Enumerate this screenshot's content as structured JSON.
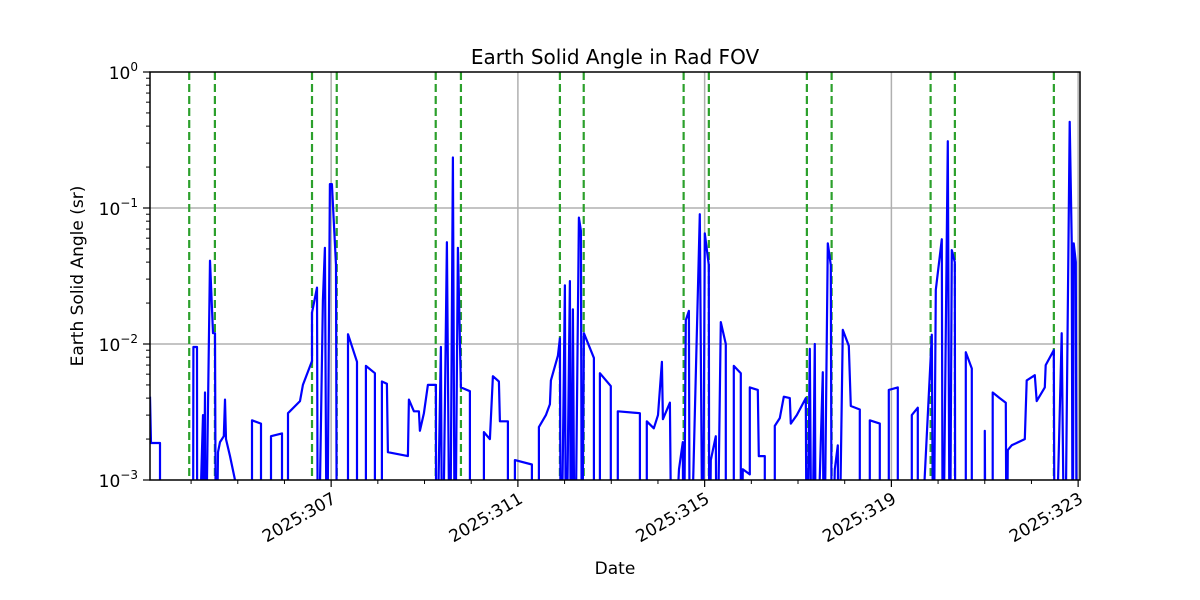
{
  "chart_data": {
    "type": "line",
    "title": "Earth Solid Angle in Rad FOV",
    "xlabel": "Date",
    "ylabel": "Earth Solid Angle (sr)",
    "xscale": "linear (day of year 2025)",
    "yscale": "log",
    "xlim": [
      303.12,
      323.04
    ],
    "ylim": [
      0.001,
      1
    ],
    "grid": true,
    "x_ticks": [
      {
        "value": 307,
        "label": "2025:307"
      },
      {
        "value": 311,
        "label": "2025:311"
      },
      {
        "value": 315,
        "label": "2025:315"
      },
      {
        "value": 319,
        "label": "2025:319"
      },
      {
        "value": 323,
        "label": "2025:323"
      }
    ],
    "y_ticks": [
      {
        "value": 0.001,
        "base": "10",
        "exp": "−3"
      },
      {
        "value": 0.01,
        "base": "10",
        "exp": "−2"
      },
      {
        "value": 0.1,
        "base": "10",
        "exp": "−1"
      },
      {
        "value": 1,
        "base": "10",
        "exp": "0"
      }
    ],
    "colors": {
      "series": "#0000ff",
      "event_lines": "#2ca02c",
      "grid": "#b0b0b0"
    },
    "event_lines_days": [
      303.96,
      304.51,
      306.59,
      307.12,
      309.24,
      309.78,
      311.9,
      312.41,
      314.55,
      315.09,
      317.19,
      317.72,
      319.84,
      320.36,
      322.48
    ],
    "series": [
      {
        "name": "Earth solid angle",
        "points": [
          [
            303.12,
            0.0041
          ],
          [
            303.141,
            0.00187
          ],
          [
            303.334,
            0.00187
          ],
          [
            303.334,
            0.0001
          ],
          [
            304.041,
            0.0001
          ],
          [
            304.05,
            0.0095
          ],
          [
            304.126,
            0.0095
          ],
          [
            304.13,
            0.0001
          ],
          [
            304.255,
            0.003
          ],
          [
            304.26,
            0.0001
          ],
          [
            304.298,
            0.0044
          ],
          [
            304.3,
            0.0001
          ],
          [
            304.405,
            0.041
          ],
          [
            304.469,
            0.012
          ],
          [
            304.512,
            0.012
          ],
          [
            304.533,
            0.0001
          ],
          [
            304.576,
            0.0016
          ],
          [
            304.619,
            0.0019
          ],
          [
            304.7,
            0.0021
          ],
          [
            304.726,
            0.0039
          ],
          [
            304.747,
            0.002
          ],
          [
            304.833,
            0.0015
          ],
          [
            304.94,
            0.001
          ],
          [
            304.96,
            0.0001
          ],
          [
            305.304,
            0.0001
          ],
          [
            305.304,
            0.00275
          ],
          [
            305.497,
            0.0026
          ],
          [
            305.497,
            0.0001
          ],
          [
            305.711,
            0.0001
          ],
          [
            305.711,
            0.0021
          ],
          [
            305.947,
            0.0022
          ],
          [
            305.947,
            0.0001
          ],
          [
            306.075,
            0.0001
          ],
          [
            306.075,
            0.0031
          ],
          [
            306.332,
            0.0038
          ],
          [
            306.396,
            0.005
          ],
          [
            306.589,
            0.0075
          ],
          [
            306.589,
            0.017
          ],
          [
            306.696,
            0.026
          ],
          [
            306.717,
            0.0001
          ],
          [
            306.824,
            0.021
          ],
          [
            306.867,
            0.051
          ],
          [
            306.91,
            0.0001
          ],
          [
            306.974,
            0.15
          ],
          [
            307.017,
            0.15
          ],
          [
            307.103,
            0.038
          ],
          [
            307.124,
            0.0001
          ],
          [
            307.36,
            0.0001
          ],
          [
            307.36,
            0.0118
          ],
          [
            307.553,
            0.0074
          ],
          [
            307.553,
            0.0001
          ],
          [
            307.745,
            0.0001
          ],
          [
            307.745,
            0.0069
          ],
          [
            307.938,
            0.0061
          ],
          [
            307.938,
            0.0001
          ],
          [
            308.088,
            0.0001
          ],
          [
            308.088,
            0.0053
          ],
          [
            308.195,
            0.0051
          ],
          [
            308.216,
            0.0016
          ],
          [
            308.645,
            0.0015
          ],
          [
            308.666,
            0.0039
          ],
          [
            308.773,
            0.0032
          ],
          [
            308.88,
            0.0032
          ],
          [
            308.902,
            0.0023
          ],
          [
            308.987,
            0.0031
          ],
          [
            309.073,
            0.005
          ],
          [
            309.244,
            0.005
          ],
          [
            309.25,
            0.0001
          ],
          [
            309.351,
            0.0095
          ],
          [
            309.38,
            0.0001
          ],
          [
            309.48,
            0.056
          ],
          [
            309.544,
            0.0001
          ],
          [
            309.608,
            0.235
          ],
          [
            309.651,
            0.0001
          ],
          [
            309.715,
            0.051
          ],
          [
            309.779,
            0.0048
          ],
          [
            309.972,
            0.0045
          ],
          [
            309.972,
            0.0001
          ],
          [
            310.272,
            0.0001
          ],
          [
            310.272,
            0.00225
          ],
          [
            310.4,
            0.002
          ],
          [
            310.464,
            0.0058
          ],
          [
            310.593,
            0.0053
          ],
          [
            310.614,
            0.0027
          ],
          [
            310.786,
            0.0027
          ],
          [
            310.786,
            0.0001
          ],
          [
            310.936,
            0.0001
          ],
          [
            310.936,
            0.0014
          ],
          [
            311.3,
            0.0013
          ],
          [
            311.3,
            0.0001
          ],
          [
            311.45,
            0.0001
          ],
          [
            311.45,
            0.00245
          ],
          [
            311.6,
            0.003
          ],
          [
            311.685,
            0.0036
          ],
          [
            311.707,
            0.0054
          ],
          [
            311.857,
            0.0082
          ],
          [
            311.899,
            0.011
          ],
          [
            311.921,
            0.0001
          ],
          [
            312.006,
            0.027
          ],
          [
            312.028,
            0.0001
          ],
          [
            312.114,
            0.029
          ],
          [
            312.135,
            0.0001
          ],
          [
            312.178,
            0.018
          ],
          [
            312.22,
            0.0001
          ],
          [
            312.306,
            0.085
          ],
          [
            312.349,
            0.068
          ],
          [
            312.371,
            0.0001
          ],
          [
            312.413,
            0.012
          ],
          [
            312.627,
            0.0079
          ],
          [
            312.627,
            0.0001
          ],
          [
            312.756,
            0.0001
          ],
          [
            312.756,
            0.0061
          ],
          [
            312.991,
            0.0049
          ],
          [
            312.991,
            0.0001
          ],
          [
            313.141,
            0.0001
          ],
          [
            313.141,
            0.0032
          ],
          [
            313.613,
            0.0031
          ],
          [
            313.613,
            0.0001
          ],
          [
            313.762,
            0.0001
          ],
          [
            313.762,
            0.0027
          ],
          [
            313.912,
            0.0024
          ],
          [
            314.0,
            0.003
          ],
          [
            314.084,
            0.0074
          ],
          [
            314.105,
            0.0028
          ],
          [
            314.255,
            0.0037
          ],
          [
            314.298,
            0.0001
          ],
          [
            314.45,
            0.0012
          ],
          [
            314.533,
            0.0019
          ],
          [
            314.55,
            0.0001
          ],
          [
            314.597,
            0.015
          ],
          [
            314.662,
            0.0175
          ],
          [
            314.683,
            0.0001
          ],
          [
            314.897,
            0.09
          ],
          [
            314.961,
            0.0001
          ],
          [
            315.004,
            0.065
          ],
          [
            315.09,
            0.038
          ],
          [
            315.1,
            0.0001
          ],
          [
            315.133,
            0.0014
          ],
          [
            315.24,
            0.0021
          ],
          [
            315.26,
            0.0001
          ],
          [
            315.347,
            0.0145
          ],
          [
            315.454,
            0.01
          ],
          [
            315.454,
            0.0001
          ],
          [
            315.625,
            0.0001
          ],
          [
            315.625,
            0.0069
          ],
          [
            315.775,
            0.0061
          ],
          [
            315.775,
            0.0001
          ],
          [
            315.818,
            0.0012
          ],
          [
            315.968,
            0.0011
          ],
          [
            315.968,
            0.0048
          ],
          [
            316.139,
            0.0046
          ],
          [
            316.16,
            0.0015
          ],
          [
            316.289,
            0.0015
          ],
          [
            316.289,
            0.0001
          ],
          [
            316.503,
            0.0001
          ],
          [
            316.503,
            0.0025
          ],
          [
            316.61,
            0.00285
          ],
          [
            316.696,
            0.0041
          ],
          [
            316.824,
            0.004
          ],
          [
            316.846,
            0.0026
          ],
          [
            316.974,
            0.003
          ],
          [
            317.167,
            0.004
          ],
          [
            317.188,
            0.0001
          ],
          [
            317.253,
            0.0092
          ],
          [
            317.296,
            0.0001
          ],
          [
            317.36,
            0.01
          ],
          [
            317.381,
            0.0001
          ],
          [
            317.531,
            0.0062
          ],
          [
            317.553,
            0.0001
          ],
          [
            317.638,
            0.055
          ],
          [
            317.702,
            0.038
          ],
          [
            317.724,
            0.0001
          ],
          [
            317.788,
            0.0012
          ],
          [
            317.852,
            0.0018
          ],
          [
            317.87,
            0.0001
          ],
          [
            317.959,
            0.0127
          ],
          [
            318.088,
            0.0097
          ],
          [
            318.131,
            0.0035
          ],
          [
            318.323,
            0.0033
          ],
          [
            318.323,
            0.0001
          ],
          [
            318.538,
            0.0001
          ],
          [
            318.538,
            0.00275
          ],
          [
            318.752,
            0.0026
          ],
          [
            318.752,
            0.0001
          ],
          [
            318.944,
            0.0001
          ],
          [
            318.944,
            0.0046
          ],
          [
            319.137,
            0.0048
          ],
          [
            319.137,
            0.0001
          ],
          [
            319.437,
            0.0001
          ],
          [
            319.437,
            0.003
          ],
          [
            319.565,
            0.0034
          ],
          [
            319.565,
            0.0001
          ],
          [
            319.865,
            0.0117
          ],
          [
            319.9,
            0.0001
          ],
          [
            319.951,
            0.025
          ],
          [
            320.079,
            0.059
          ],
          [
            320.101,
            0.0001
          ],
          [
            320.208,
            0.31
          ],
          [
            320.251,
            0.0001
          ],
          [
            320.293,
            0.049
          ],
          [
            320.358,
            0.04
          ],
          [
            320.37,
            0.0001
          ],
          [
            320.593,
            0.0001
          ],
          [
            320.593,
            0.0087
          ],
          [
            320.722,
            0.0066
          ],
          [
            320.722,
            0.0001
          ],
          [
            321.0,
            0.0001
          ],
          [
            321.0,
            0.0023
          ],
          [
            321.021,
            0.0001
          ],
          [
            321.171,
            0.0001
          ],
          [
            321.171,
            0.0044
          ],
          [
            321.321,
            0.004
          ],
          [
            321.45,
            0.0037
          ],
          [
            321.47,
            0.0001
          ],
          [
            321.493,
            0.00166
          ],
          [
            321.578,
            0.0018
          ],
          [
            321.857,
            0.002
          ],
          [
            321.899,
            0.0054
          ],
          [
            322.071,
            0.0059
          ],
          [
            322.113,
            0.0038
          ],
          [
            322.285,
            0.0048
          ],
          [
            322.306,
            0.007
          ],
          [
            322.478,
            0.009
          ],
          [
            322.499,
            0.0001
          ],
          [
            322.649,
            0.012
          ],
          [
            322.713,
            0.0001
          ],
          [
            322.82,
            0.43
          ],
          [
            322.863,
            0.058
          ],
          [
            322.884,
            0.0001
          ],
          [
            322.906,
            0.055
          ],
          [
            322.949,
            0.04
          ],
          [
            322.97,
            0.0001
          ]
        ]
      }
    ]
  }
}
